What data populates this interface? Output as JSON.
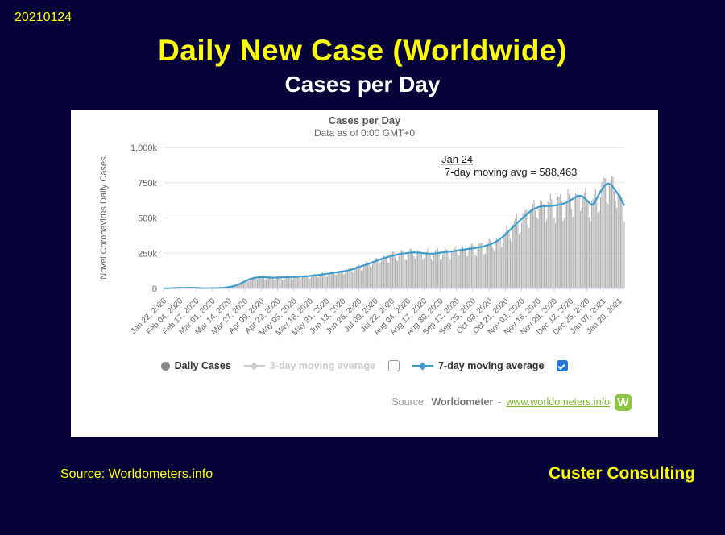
{
  "slide": {
    "date_stamp": "20210124",
    "title": "Daily New Case (Worldwide)",
    "subtitle": "Cases per Day",
    "footer_source": "Source: Worldometers.info",
    "footer_brand": "Custer Consulting",
    "colors": {
      "background": "#050338",
      "accent_yellow": "#FFFF00"
    }
  },
  "chart_card": {
    "title": "Cases per Day",
    "subtitle": "Data as of 0:00 GMT+0",
    "source": {
      "prefix": "Source:",
      "name": "Worldometer",
      "separator": "-",
      "link": "www.worldometers.info",
      "logo_letter": "W",
      "logo_color": "#8DC63F"
    }
  },
  "legend": {
    "items": [
      {
        "label": "Daily Cases",
        "marker": "circle",
        "marker_color": "#888888",
        "enabled": true
      },
      {
        "label": "3-day moving average",
        "marker": "line-diamond",
        "marker_color": "#CCCCCC",
        "enabled": false
      },
      {
        "label": "7-day moving average",
        "marker": "line-diamond",
        "marker_color": "#3B9CCE",
        "enabled": true
      }
    ],
    "checkbox_3day_checked": false,
    "checkbox_7day_checked": true
  },
  "chart_data": {
    "type": "bar",
    "title": "Cases per Day",
    "subtitle": "Data as of 0:00 GMT+0",
    "ylabel": "Novel Coronavirus Daily Cases",
    "yticks_labels": [
      "0",
      "250k",
      "500k",
      "750k",
      "1,000k"
    ],
    "ymax_k": 1000,
    "grid": "horizontal",
    "total_days": 368,
    "x_tick_day_interval": 13,
    "x_tick_labels": [
      "Jan 22, 2020",
      "Feb 04, 2020",
      "Feb 17, 2020",
      "Mar 01, 2020",
      "Mar 14, 2020",
      "Mar 27, 2020",
      "Apr 09, 2020",
      "Apr 22, 2020",
      "May 05, 2020",
      "May 18, 2020",
      "May 31, 2020",
      "Jun 13, 2020",
      "Jun 26, 2020",
      "Jul 09, 2020",
      "Jul 22, 2020",
      "Aug 04, 2020",
      "Aug 17, 2020",
      "Aug 30, 2020",
      "Sep 12, 2020",
      "Sep 25, 2020",
      "Oct 08, 2020",
      "Oct 21, 2020",
      "Nov 03, 2020",
      "Nov 16, 2020",
      "Nov 29, 2020",
      "Dec 12, 2020",
      "Dec 25, 2020",
      "Jan 07, 2021",
      "Jan 20, 2021"
    ],
    "annotation": {
      "line1": "Jan 24",
      "line2": "7-day moving avg = 588,463",
      "last_avg_value": 588463
    },
    "series": [
      {
        "name": "Daily Cases",
        "type": "bar",
        "color": "#B0B0B0"
      },
      {
        "name": "7-day moving average",
        "type": "line",
        "color": "#3B9CCE",
        "points_day_valueK": [
          [
            0,
            0.5
          ],
          [
            4,
            1.2
          ],
          [
            8,
            2.4
          ],
          [
            12,
            3.2
          ],
          [
            16,
            4.0
          ],
          [
            20,
            4.6
          ],
          [
            24,
            4.2
          ],
          [
            28,
            2.4
          ],
          [
            32,
            1.7
          ],
          [
            36,
            1.8
          ],
          [
            40,
            2.1
          ],
          [
            44,
            2.7
          ],
          [
            48,
            4.5
          ],
          [
            52,
            9
          ],
          [
            56,
            17
          ],
          [
            60,
            29
          ],
          [
            64,
            46
          ],
          [
            68,
            63
          ],
          [
            72,
            74
          ],
          [
            76,
            80
          ],
          [
            80,
            81
          ],
          [
            84,
            78
          ],
          [
            88,
            76
          ],
          [
            92,
            78
          ],
          [
            96,
            80
          ],
          [
            100,
            81
          ],
          [
            104,
            82
          ],
          [
            108,
            84
          ],
          [
            112,
            85
          ],
          [
            116,
            88
          ],
          [
            120,
            92
          ],
          [
            124,
            96
          ],
          [
            128,
            101
          ],
          [
            132,
            106
          ],
          [
            136,
            112
          ],
          [
            140,
            117
          ],
          [
            144,
            122
          ],
          [
            148,
            130
          ],
          [
            152,
            139
          ],
          [
            156,
            151
          ],
          [
            160,
            164
          ],
          [
            164,
            176
          ],
          [
            168,
            189
          ],
          [
            172,
            203
          ],
          [
            176,
            215
          ],
          [
            180,
            226
          ],
          [
            184,
            235
          ],
          [
            188,
            243
          ],
          [
            192,
            249
          ],
          [
            196,
            253
          ],
          [
            200,
            256
          ],
          [
            204,
            254
          ],
          [
            208,
            250
          ],
          [
            212,
            247
          ],
          [
            216,
            247
          ],
          [
            220,
            253
          ],
          [
            224,
            257
          ],
          [
            228,
            261
          ],
          [
            232,
            265
          ],
          [
            236,
            271
          ],
          [
            240,
            276
          ],
          [
            244,
            281
          ],
          [
            248,
            285
          ],
          [
            252,
            291
          ],
          [
            256,
            299
          ],
          [
            260,
            310
          ],
          [
            264,
            325
          ],
          [
            268,
            345
          ],
          [
            272,
            373
          ],
          [
            276,
            409
          ],
          [
            280,
            443
          ],
          [
            284,
            477
          ],
          [
            288,
            509
          ],
          [
            292,
            541
          ],
          [
            296,
            565
          ],
          [
            300,
            579
          ],
          [
            304,
            585
          ],
          [
            308,
            585
          ],
          [
            312,
            588
          ],
          [
            316,
            594
          ],
          [
            320,
            603
          ],
          [
            324,
            620
          ],
          [
            328,
            641
          ],
          [
            331,
            657
          ],
          [
            334,
            656
          ],
          [
            337,
            636
          ],
          [
            340,
            608
          ],
          [
            342,
            593
          ],
          [
            344,
            601
          ],
          [
            346,
            638
          ],
          [
            349,
            689
          ],
          [
            352,
            728
          ],
          [
            355,
            745
          ],
          [
            357,
            739
          ],
          [
            359,
            719
          ],
          [
            361,
            695
          ],
          [
            363,
            668
          ],
          [
            365,
            639
          ],
          [
            367,
            605
          ],
          [
            368,
            588
          ]
        ]
      }
    ],
    "bar_weekly_pattern": [
      1.05,
      1.1,
      1.08,
      1.0,
      0.84,
      0.82,
      1.0
    ],
    "bar_jitter": {
      "a1": 0.04,
      "f1": 2.3,
      "a2": 0.03,
      "f2": 0.7
    },
    "axis_colors": {
      "grid": "#E6E6E6",
      "axis_line": "#CCD6EB",
      "tick_text": "#666666",
      "annotation_text": "#222222"
    }
  }
}
